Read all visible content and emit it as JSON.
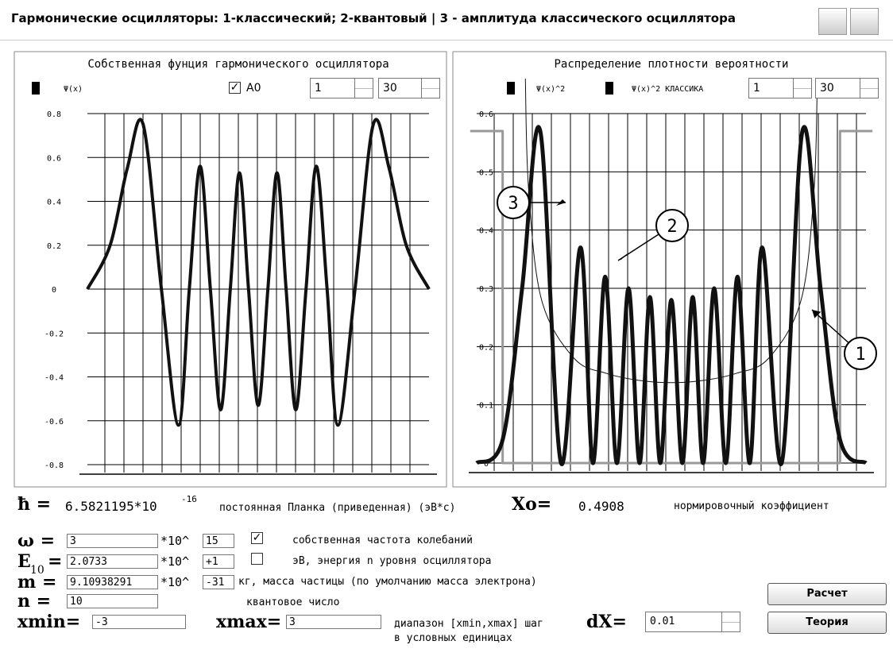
{
  "header": {
    "title": "Гармонические осцилляторы: 1-классический;  2-квантовый | 3 - амплитуда классического осциллятора"
  },
  "chart_data": [
    {
      "type": "line",
      "title": "Собственная фунция гармонического осциллятора",
      "checkbox_label": "А0",
      "spin_from": "1",
      "spin_to": "30",
      "xlim": [
        -3,
        3
      ],
      "ylim": [
        -0.8,
        0.8
      ],
      "yticks": [
        0.8,
        0.6,
        0.4,
        0.2,
        0,
        -0.2,
        -0.4,
        -0.6,
        -0.8
      ],
      "grid": true,
      "series": [
        {
          "name": "Ψ(x)",
          "color": "#111111",
          "x": [
            -3,
            -2.6,
            -2.3,
            -2.02,
            -1.7,
            -1.4,
            -1.21,
            -1.02,
            -0.84,
            -0.66,
            -0.49,
            -0.33,
            -0.17,
            0,
            0.17,
            0.33,
            0.49,
            0.66,
            0.84,
            1.02,
            1.21,
            1.4,
            1.7,
            2.02,
            2.3,
            2.6,
            3
          ],
          "values": [
            0,
            0.2,
            0.55,
            0.75,
            0,
            -0.62,
            0,
            0.56,
            0,
            -0.55,
            0,
            0.53,
            0,
            -0.53,
            0,
            0.53,
            0,
            -0.55,
            0,
            0.56,
            0,
            -0.62,
            0,
            0.75,
            0.55,
            0.2,
            0
          ]
        }
      ]
    },
    {
      "type": "line",
      "title": "Распределение плотности вероятности",
      "spin_from": "1",
      "spin_to": "30",
      "xlim": [
        -3,
        3
      ],
      "ylim": [
        0,
        0.6
      ],
      "yticks": [
        0.6,
        0.5,
        0.4,
        0.3,
        0.2,
        0.1,
        0
      ],
      "grid": true,
      "annotations": [
        "3",
        "2",
        "1"
      ],
      "series": [
        {
          "name": "Ψ(x)^2",
          "color": "#111111",
          "width": 5,
          "x": [
            -3,
            -2.6,
            -2.3,
            -2.02,
            -1.7,
            -1.4,
            -1.21,
            -1.02,
            -0.84,
            -0.66,
            -0.49,
            -0.33,
            -0.17,
            0,
            0.17,
            0.33,
            0.49,
            0.66,
            0.84,
            1.02,
            1.21,
            1.4,
            1.7,
            2.02,
            2.3,
            2.6,
            3
          ],
          "values": [
            0,
            0.04,
            0.3,
            0.57,
            0,
            0.37,
            0,
            0.32,
            0,
            0.3,
            0,
            0.285,
            0,
            0.28,
            0,
            0.285,
            0,
            0.3,
            0,
            0.32,
            0,
            0.37,
            0,
            0.57,
            0.3,
            0.04,
            0
          ]
        },
        {
          "name": "Ψ(x)^2 КЛАССИКА",
          "color": "#111111",
          "width": 1,
          "x": [
            -2.25,
            -2.2,
            -2,
            -1.5,
            -1,
            -0.5,
            0,
            0.5,
            1,
            1.5,
            2,
            2.2,
            2.25
          ],
          "values": [
            0.66,
            0.47,
            0.28,
            0.18,
            0.154,
            0.142,
            0.138,
            0.142,
            0.154,
            0.18,
            0.28,
            0.47,
            0.66
          ]
        },
        {
          "color": "#999999",
          "width": 3,
          "x": [
            -3.1,
            -2.6,
            -2.6,
            2.6,
            2.6,
            3.1
          ],
          "values": [
            0.57,
            0.57,
            0,
            0,
            0.57,
            0.57
          ]
        }
      ]
    }
  ],
  "form": {
    "hbar": {
      "label": "ħ =",
      "mantissa": "6.5821195*10",
      "exponent": "-16",
      "desc": "постоянная Планка (приведенная) (эВ*с)"
    },
    "x0": {
      "label": "Xo=",
      "value": "0.4908",
      "desc": "нормировочный коэффициент"
    },
    "omega": {
      "label": "ω =",
      "value": "3",
      "mult": "*10^",
      "exp": "15",
      "desc": "собственная частота колебаний"
    },
    "energy": {
      "label": "E",
      "sub": "10",
      "eq": "=",
      "value": "2.0733",
      "mult": "*10^",
      "exp": "+1",
      "desc": "эВ, энергия n уровня осциллятора"
    },
    "mass": {
      "label": "m =",
      "value": "9.10938291",
      "mult": "*10^",
      "exp": "-31",
      "desc": "кг, масса частицы (по умолчанию масса электрона)"
    },
    "n": {
      "label": "n =",
      "value": "10",
      "desc": "квантовое число"
    },
    "xmin": {
      "label": "xmin=",
      "value": "-3"
    },
    "xmax": {
      "label": "xmax=",
      "value": "3"
    },
    "range": {
      "desc": "диапазон [xmin,xmax] шаг",
      "dx_label": "dX=",
      "dx": "0.01",
      "units": "в условных единицах"
    },
    "buttons": [
      "Расчет",
      "Теория"
    ]
  }
}
